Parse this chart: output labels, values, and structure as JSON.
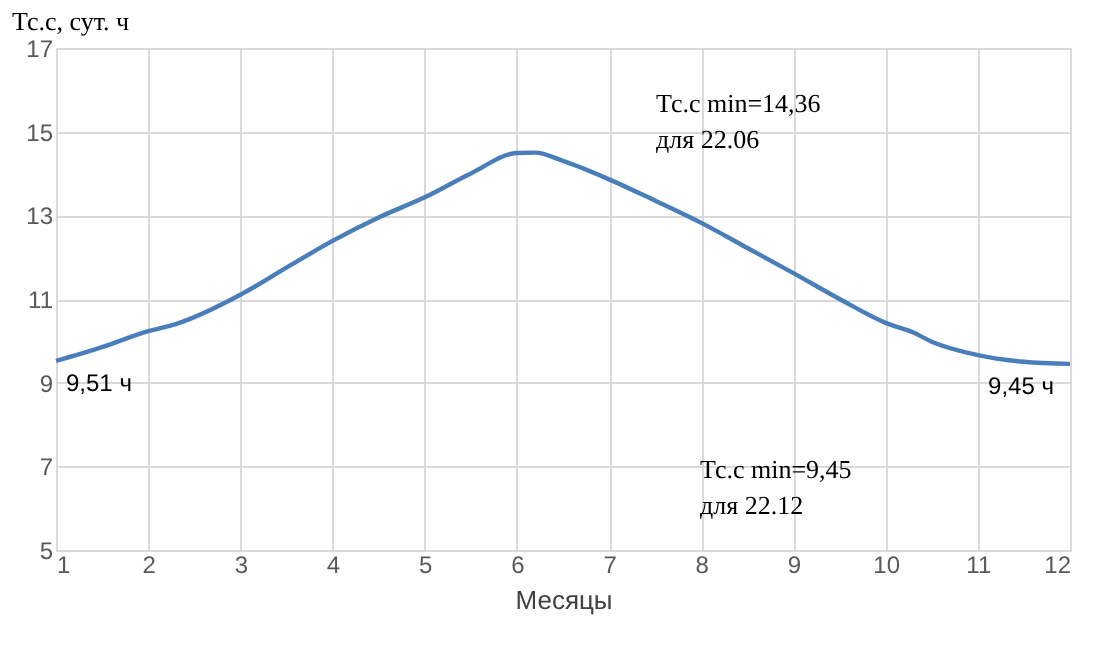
{
  "chart_data": {
    "type": "line",
    "xlabel": "Месяцы",
    "ylabel": "Тс.с, сут. ч",
    "x": [
      1,
      1.5,
      2,
      2.3,
      3,
      3.5,
      4,
      4.5,
      5,
      5.5,
      6,
      6.2,
      6.5,
      7,
      7.5,
      8,
      8.5,
      9,
      9.5,
      10,
      10.3,
      10.5,
      11,
      11.5,
      12
    ],
    "series": [
      {
        "color": "#4a7ebb",
        "values": [
          9.52,
          9.85,
          10.23,
          10.4,
          11.1,
          11.75,
          12.39,
          12.95,
          13.43,
          14.0,
          14.49,
          14.5,
          14.3,
          13.86,
          13.35,
          12.82,
          12.22,
          11.62,
          11.0,
          10.43,
          10.2,
          9.98,
          9.66,
          9.5,
          9.45
        ]
      }
    ],
    "xlim": [
      1,
      12
    ],
    "xticks": [
      1,
      2,
      3,
      4,
      5,
      6,
      7,
      8,
      9,
      10,
      11,
      12
    ],
    "ylim": [
      5,
      17
    ],
    "yticks": [
      5,
      7,
      9,
      11,
      13,
      15,
      17
    ],
    "grid": true,
    "marker": "none",
    "line_style": "solid",
    "annotations": [
      {
        "text": "9,51 ч",
        "x": 1,
        "y": 9.51
      },
      {
        "text": "9,45 ч",
        "x": 12,
        "y": 9.45
      },
      "Тс.с min=14,36\nдля 22.06",
      "Тс.с min=9,45\nдля 22.12"
    ]
  }
}
